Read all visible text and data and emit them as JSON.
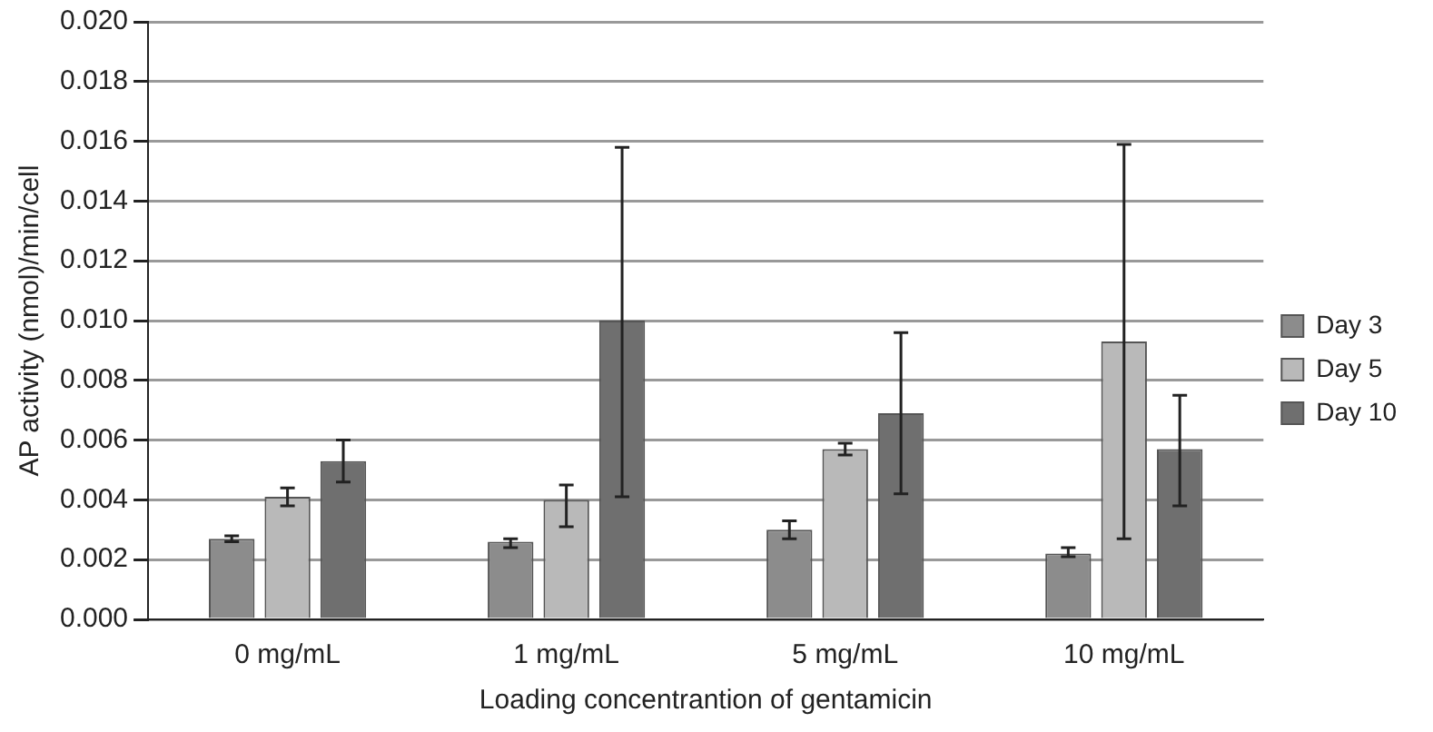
{
  "chart_data": {
    "type": "bar",
    "xlabel": "Loading concentrantion of gentamicin",
    "ylabel": "AP activity (nmol)/min/cell",
    "categories": [
      "0 mg/mL",
      "1 mg/mL",
      "5 mg/mL",
      "10 mg/mL"
    ],
    "series": [
      {
        "name": "Day 3",
        "color": "#8c8c8c",
        "values": [
          0.0027,
          0.0026,
          0.003,
          0.0022
        ],
        "errors": [
          [
            0.0026,
            0.0028
          ],
          [
            0.0024,
            0.0027
          ],
          [
            0.0027,
            0.0033
          ],
          [
            0.0021,
            0.0024
          ]
        ]
      },
      {
        "name": "Day 5",
        "color": "#b9b9b9",
        "values": [
          0.0041,
          0.004,
          0.0057,
          0.0093
        ],
        "errors": [
          [
            0.0038,
            0.0044
          ],
          [
            0.0031,
            0.0045
          ],
          [
            0.0055,
            0.0059
          ],
          [
            0.0027,
            0.0159
          ]
        ]
      },
      {
        "name": "Day 10",
        "color": "#6f6f6f",
        "values": [
          0.0053,
          0.01,
          0.0069,
          0.0057
        ],
        "errors": [
          [
            0.0046,
            0.006
          ],
          [
            0.0041,
            0.0158
          ],
          [
            0.0042,
            0.0096
          ],
          [
            0.0038,
            0.0075
          ]
        ]
      }
    ],
    "ylim": [
      0,
      0.02
    ],
    "yticks": [
      {
        "value": 0,
        "label": "0.000"
      },
      {
        "value": 0.002,
        "label": "0.002"
      },
      {
        "value": 0.004,
        "label": "0.004"
      },
      {
        "value": 0.006,
        "label": "0.006"
      },
      {
        "value": 0.008,
        "label": "0.008"
      },
      {
        "value": 0.01,
        "label": "0.010"
      },
      {
        "value": 0.012,
        "label": "0.012"
      },
      {
        "value": 0.014,
        "label": "0.014"
      },
      {
        "value": 0.016,
        "label": "0.016"
      },
      {
        "value": 0.018,
        "label": "0.018"
      },
      {
        "value": 0.02,
        "label": "0.020"
      }
    ],
    "grid": "y",
    "legend": "right"
  }
}
